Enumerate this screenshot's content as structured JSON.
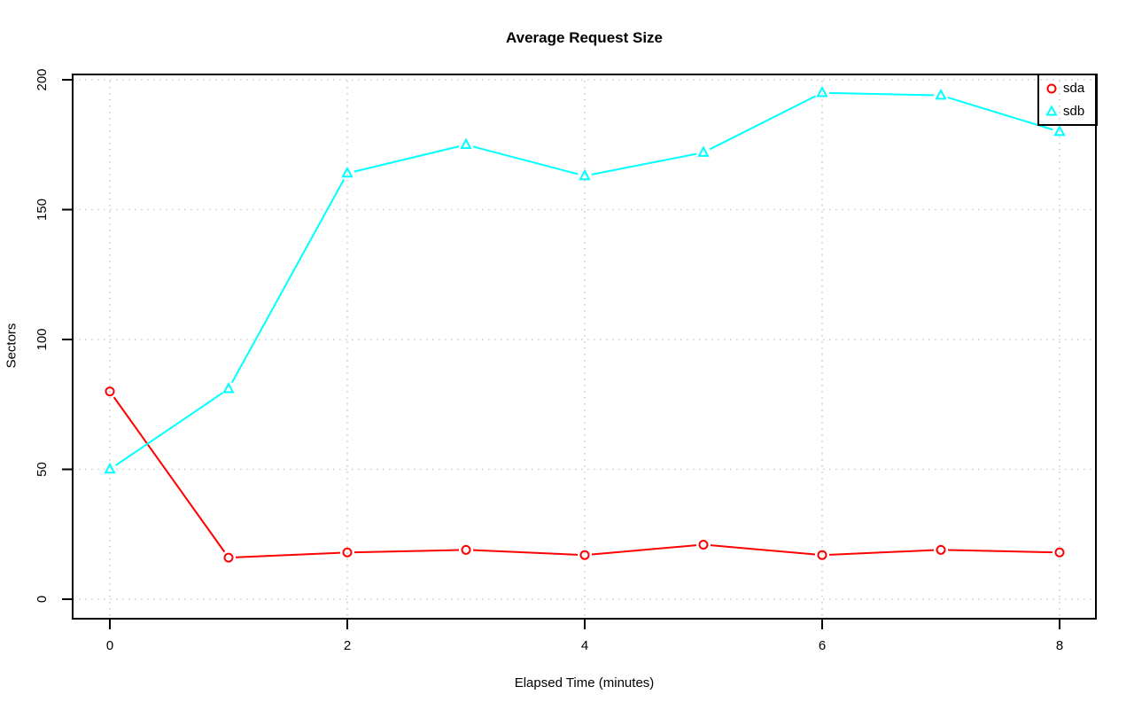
{
  "chart_data": {
    "type": "line",
    "title": "Average Request Size",
    "xlabel": "Elapsed Time (minutes)",
    "ylabel": "Sectors",
    "x": [
      0,
      1,
      2,
      3,
      4,
      5,
      6,
      7,
      8
    ],
    "xticks": [
      0,
      2,
      4,
      6,
      8
    ],
    "yticks": [
      0,
      50,
      100,
      150,
      200
    ],
    "xlim": [
      -0.3,
      8.3
    ],
    "ylim": [
      -8,
      202
    ],
    "grid": "dotted",
    "legend_position": "top-right",
    "series": [
      {
        "name": "sda",
        "color": "#FF0000",
        "marker": "circle",
        "values": [
          80,
          16,
          18,
          19,
          17,
          21,
          17,
          19,
          18
        ]
      },
      {
        "name": "sdb",
        "color": "#00FFFF",
        "marker": "triangle",
        "values": [
          50,
          81,
          164,
          175,
          163,
          172,
          195,
          194,
          180
        ]
      }
    ]
  },
  "colors": {
    "axis": "#000000",
    "grid": "#CFCFCF",
    "background": "#FFFFFF",
    "text": "#000000"
  }
}
